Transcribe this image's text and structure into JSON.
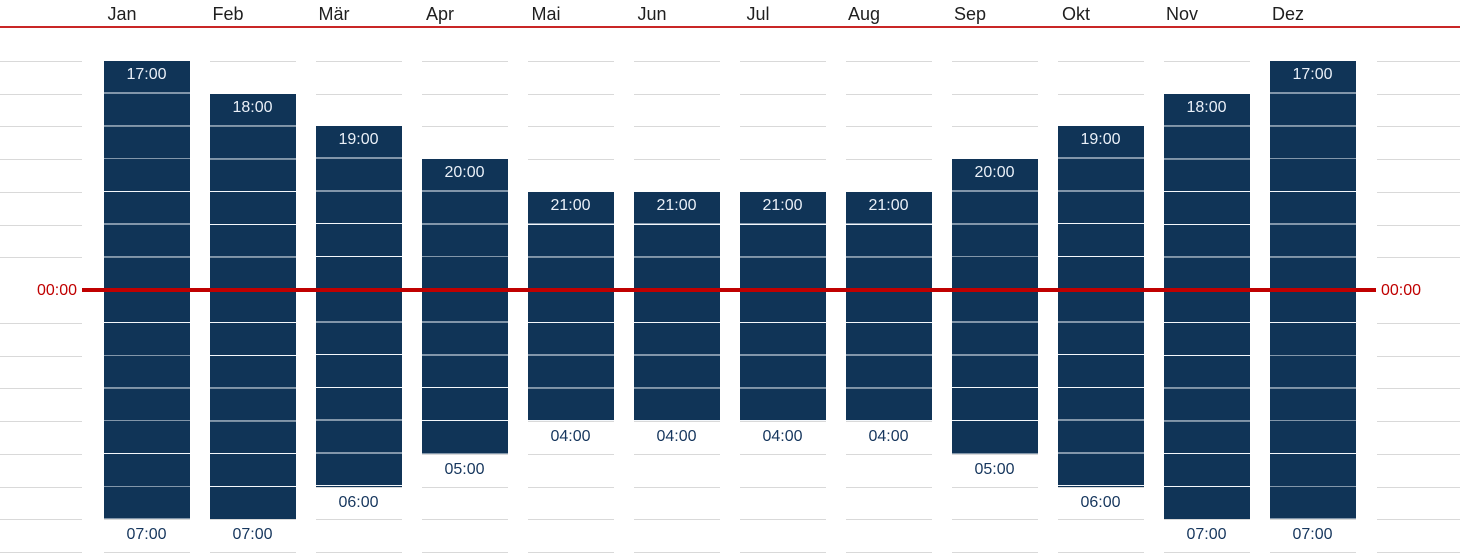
{
  "chart_data": {
    "type": "bar",
    "subtype": "vertical-floating-range-time",
    "title": "",
    "categories": [
      "Jan",
      "Feb",
      "Mär",
      "Apr",
      "Mai",
      "Jun",
      "Jul",
      "Aug",
      "Sep",
      "Okt",
      "Nov",
      "Dez"
    ],
    "bars": [
      {
        "month": "Jan",
        "start": "17:00",
        "end": "07:00"
      },
      {
        "month": "Feb",
        "start": "18:00",
        "end": "07:00"
      },
      {
        "month": "Mär",
        "start": "19:00",
        "end": "06:00"
      },
      {
        "month": "Apr",
        "start": "20:00",
        "end": "05:00"
      },
      {
        "month": "Mai",
        "start": "21:00",
        "end": "04:00"
      },
      {
        "month": "Jun",
        "start": "21:00",
        "end": "04:00"
      },
      {
        "month": "Jul",
        "start": "21:00",
        "end": "04:00"
      },
      {
        "month": "Aug",
        "start": "21:00",
        "end": "04:00"
      },
      {
        "month": "Sep",
        "start": "20:00",
        "end": "05:00"
      },
      {
        "month": "Okt",
        "start": "19:00",
        "end": "06:00"
      },
      {
        "month": "Nov",
        "start": "18:00",
        "end": "07:00"
      },
      {
        "month": "Dez",
        "start": "17:00",
        "end": "07:00"
      }
    ],
    "y_axis": {
      "midline_label_left": "00:00",
      "midline_label_right": "00:00",
      "gridline_interval_hours": 1,
      "visible_range_top": "16:00",
      "visible_range_bottom": "08:00"
    },
    "legend": "none",
    "grid": true,
    "colors": {
      "bar": "#103457",
      "bar_hour_line": "#A9C0D6",
      "bar_label": "#EAF0F8",
      "outside_label": "#17375E",
      "month_label": "#1F1F1F",
      "red_line": "#C00000",
      "gridline": "#D9D9D9",
      "background": "#FFFFFF"
    }
  }
}
